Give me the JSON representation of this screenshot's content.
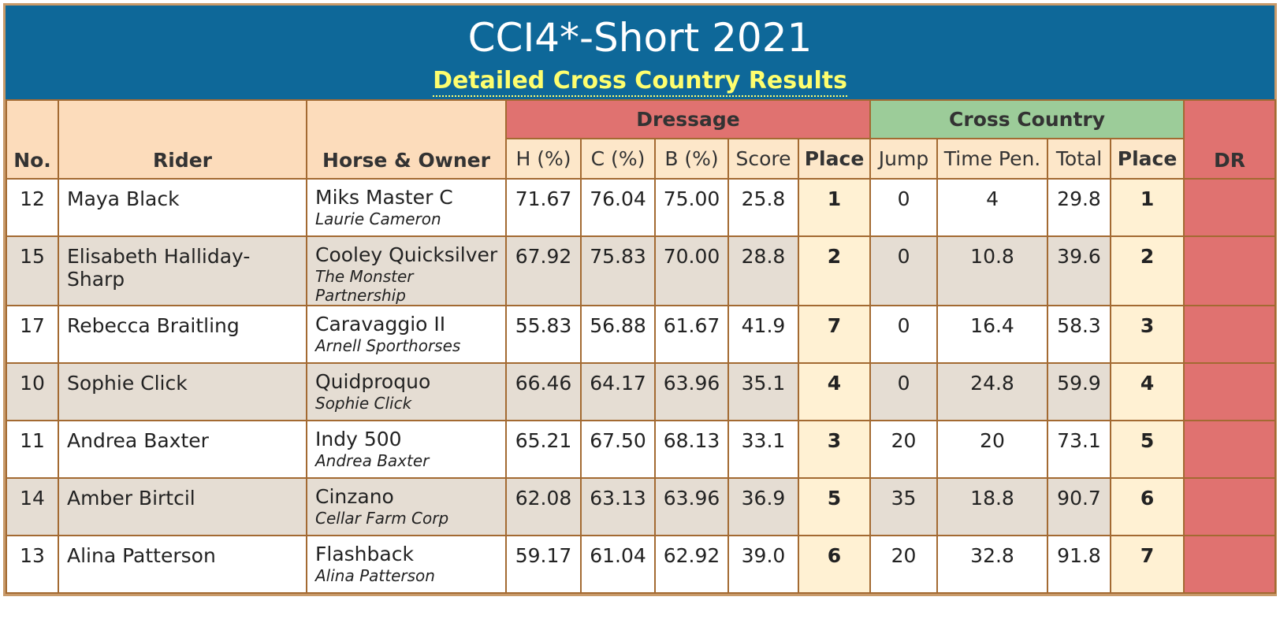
{
  "header": {
    "title": "CCI4*-Short 2021",
    "subtitle": "Detailed Cross Country Results"
  },
  "columns": {
    "no": "No.",
    "rider": "Rider",
    "horse_owner": "Horse & Owner",
    "dressage_group": "Dressage",
    "cross_country_group": "Cross Country",
    "h": "H (%)",
    "c": "C (%)",
    "b": "B (%)",
    "score": "Score",
    "d_place": "Place",
    "jump": "Jump",
    "time_pen": "Time Pen.",
    "total": "Total",
    "xc_place": "Place",
    "dr": "DR"
  },
  "rows": [
    {
      "no": "12",
      "rider": "Maya Black",
      "horse": "Miks Master C",
      "owner": "Laurie Cameron",
      "h": "71.67",
      "c": "76.04",
      "b": "75.00",
      "score": "25.8",
      "d_place": "1",
      "jump": "0",
      "time_pen": "4",
      "total": "29.8",
      "xc_place": "1"
    },
    {
      "no": "15",
      "rider": "Elisabeth Halliday-Sharp",
      "horse": "Cooley Quicksilver",
      "owner": "The Monster Partnership",
      "h": "67.92",
      "c": "75.83",
      "b": "70.00",
      "score": "28.8",
      "d_place": "2",
      "jump": "0",
      "time_pen": "10.8",
      "total": "39.6",
      "xc_place": "2"
    },
    {
      "no": "17",
      "rider": "Rebecca Braitling",
      "horse": "Caravaggio II",
      "owner": "Arnell Sporthorses",
      "h": "55.83",
      "c": "56.88",
      "b": "61.67",
      "score": "41.9",
      "d_place": "7",
      "jump": "0",
      "time_pen": "16.4",
      "total": "58.3",
      "xc_place": "3"
    },
    {
      "no": "10",
      "rider": "Sophie Click",
      "horse": "Quidproquo",
      "owner": "Sophie Click",
      "h": "66.46",
      "c": "64.17",
      "b": "63.96",
      "score": "35.1",
      "d_place": "4",
      "jump": "0",
      "time_pen": "24.8",
      "total": "59.9",
      "xc_place": "4"
    },
    {
      "no": "11",
      "rider": "Andrea Baxter",
      "horse": "Indy 500",
      "owner": "Andrea Baxter",
      "h": "65.21",
      "c": "67.50",
      "b": "68.13",
      "score": "33.1",
      "d_place": "3",
      "jump": "20",
      "time_pen": "20",
      "total": "73.1",
      "xc_place": "5"
    },
    {
      "no": "14",
      "rider": "Amber Birtcil",
      "horse": "Cinzano",
      "owner": "Cellar Farm Corp",
      "h": "62.08",
      "c": "63.13",
      "b": "63.96",
      "score": "36.9",
      "d_place": "5",
      "jump": "35",
      "time_pen": "18.8",
      "total": "90.7",
      "xc_place": "6"
    },
    {
      "no": "13",
      "rider": "Alina Patterson",
      "horse": "Flashback",
      "owner": "Alina Patterson",
      "h": "59.17",
      "c": "61.04",
      "b": "62.92",
      "score": "39.0",
      "d_place": "6",
      "jump": "20",
      "time_pen": "32.8",
      "total": "91.8",
      "xc_place": "7"
    }
  ],
  "colors": {
    "banner": "#0e6899",
    "subtitle": "#fefe6e",
    "dressage": "#e07270",
    "cross_country": "#9ccc99",
    "header": "#fcdcbb",
    "border": "#a36a32"
  }
}
